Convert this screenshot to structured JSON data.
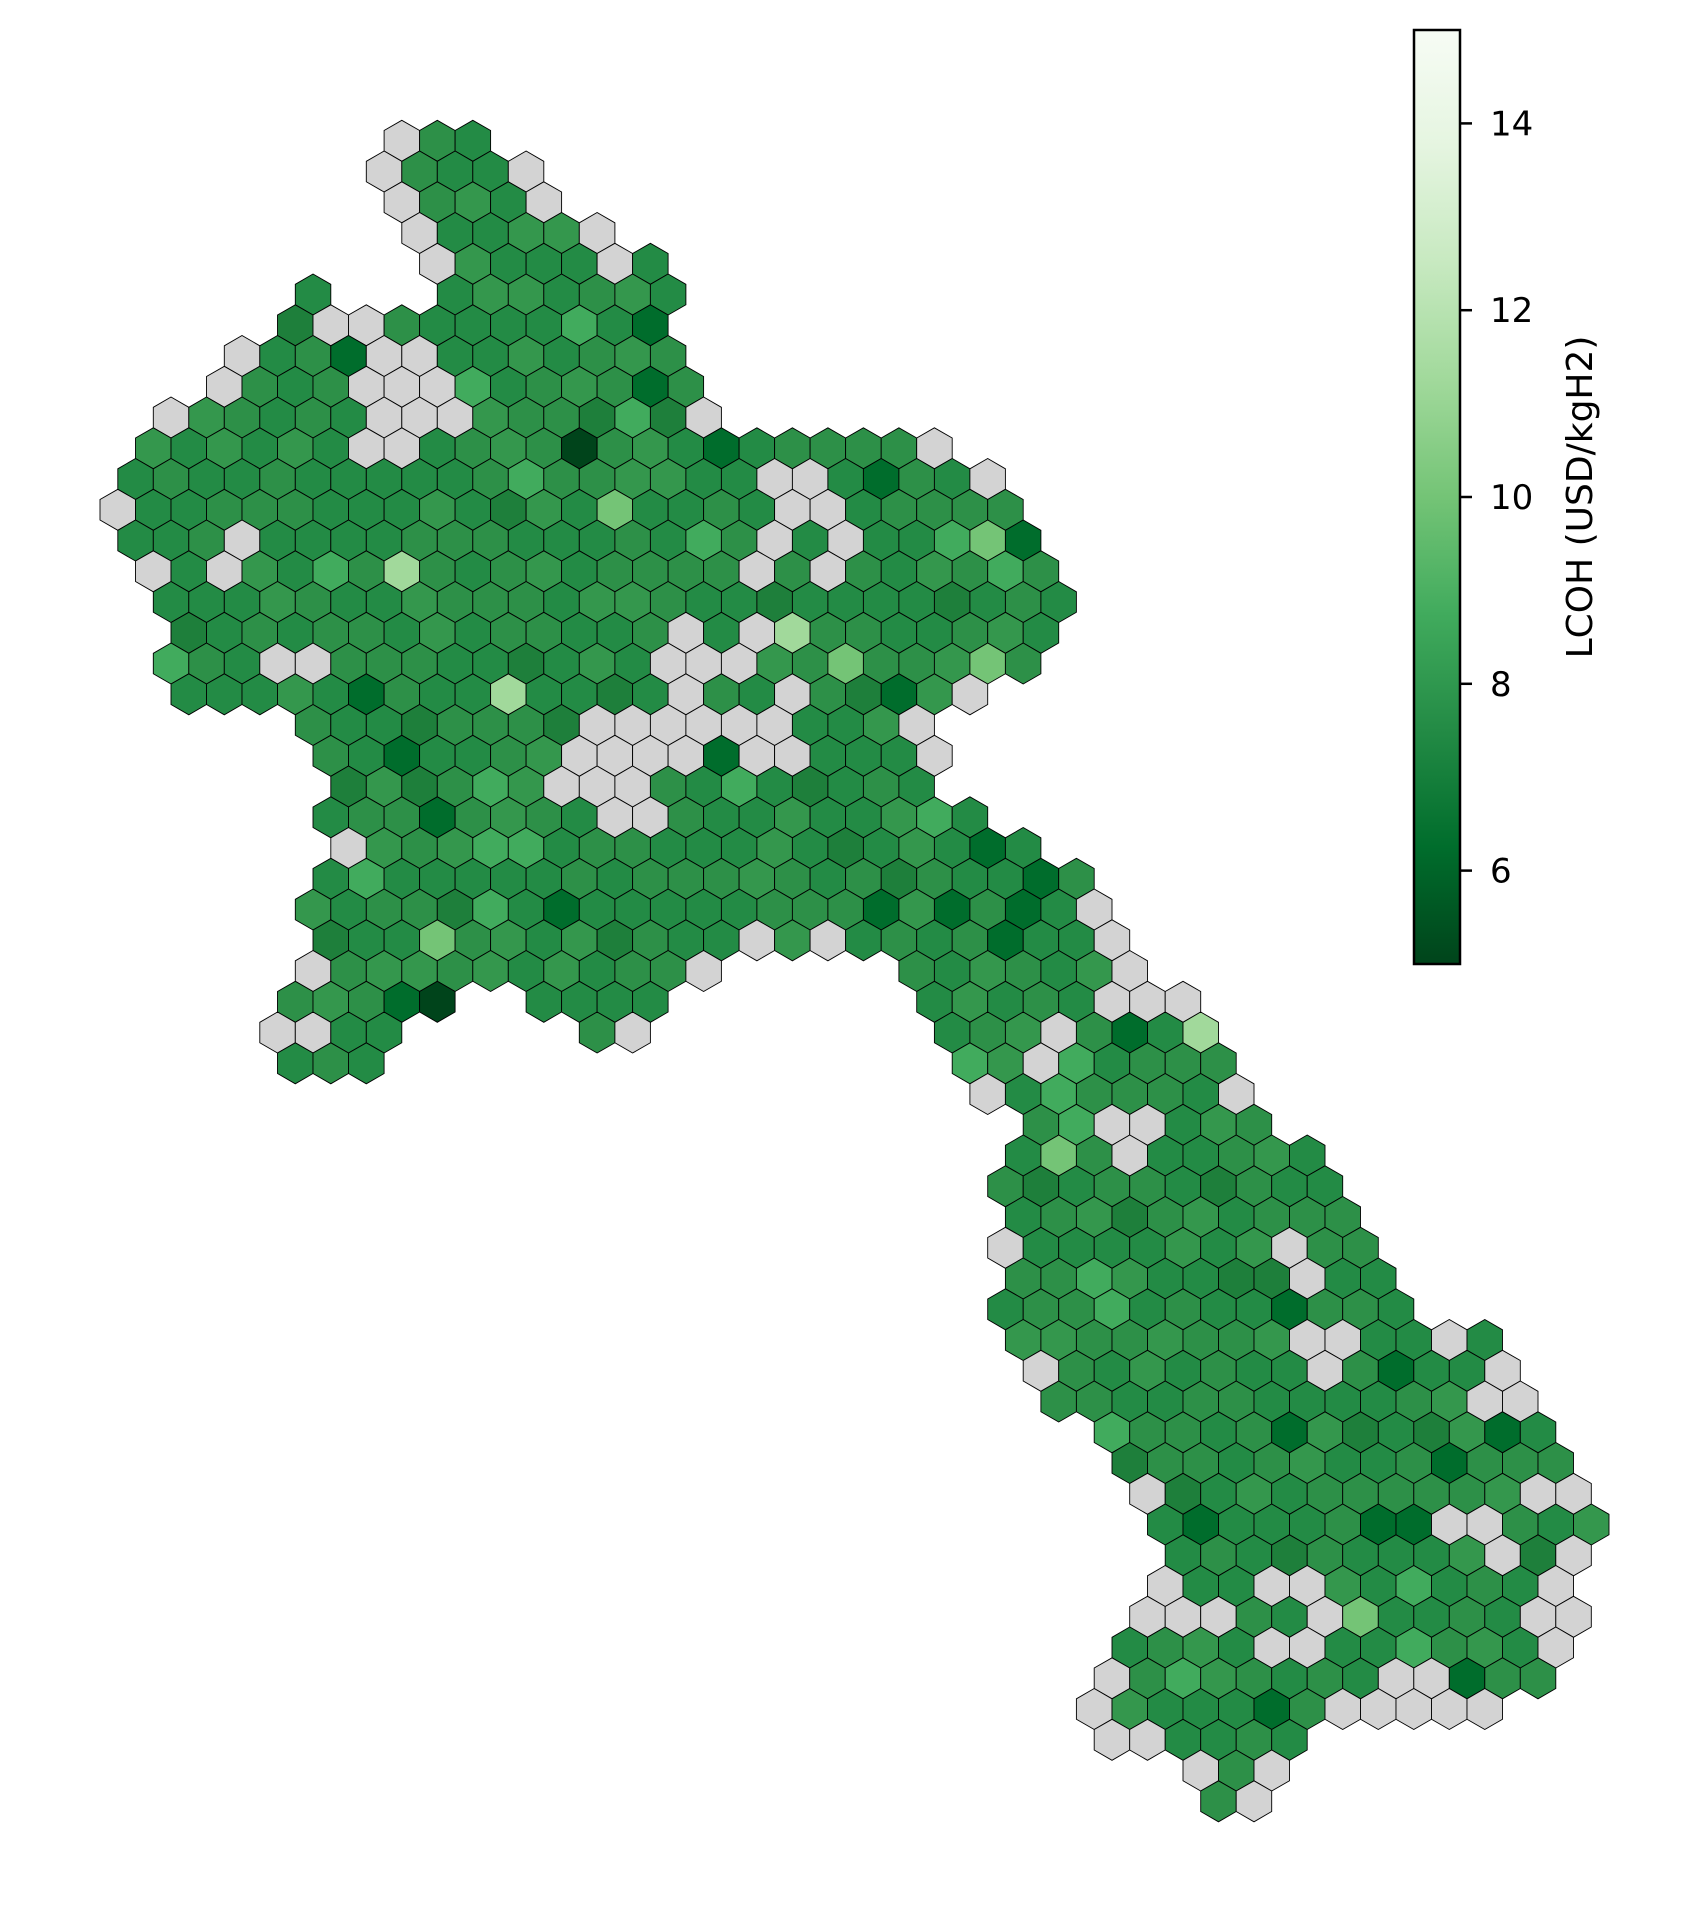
{
  "colorbar": {
    "label": "LCOH (USD/kgH2)",
    "min": 5,
    "max": 15,
    "ticks": [
      {
        "value": 6,
        "label": "6"
      },
      {
        "value": 8,
        "label": "8"
      },
      {
        "value": 10,
        "label": "10"
      },
      {
        "value": 12,
        "label": "12"
      },
      {
        "value": 14,
        "label": "14"
      }
    ],
    "colormap": "Greens_r"
  },
  "colors": {
    "no_data": "#d3d3d3",
    "hex_edge": "#000000",
    "typical": "#2f8d45"
  },
  "map": {
    "description_value_typical": 8.0,
    "no_data_label": ""
  }
}
